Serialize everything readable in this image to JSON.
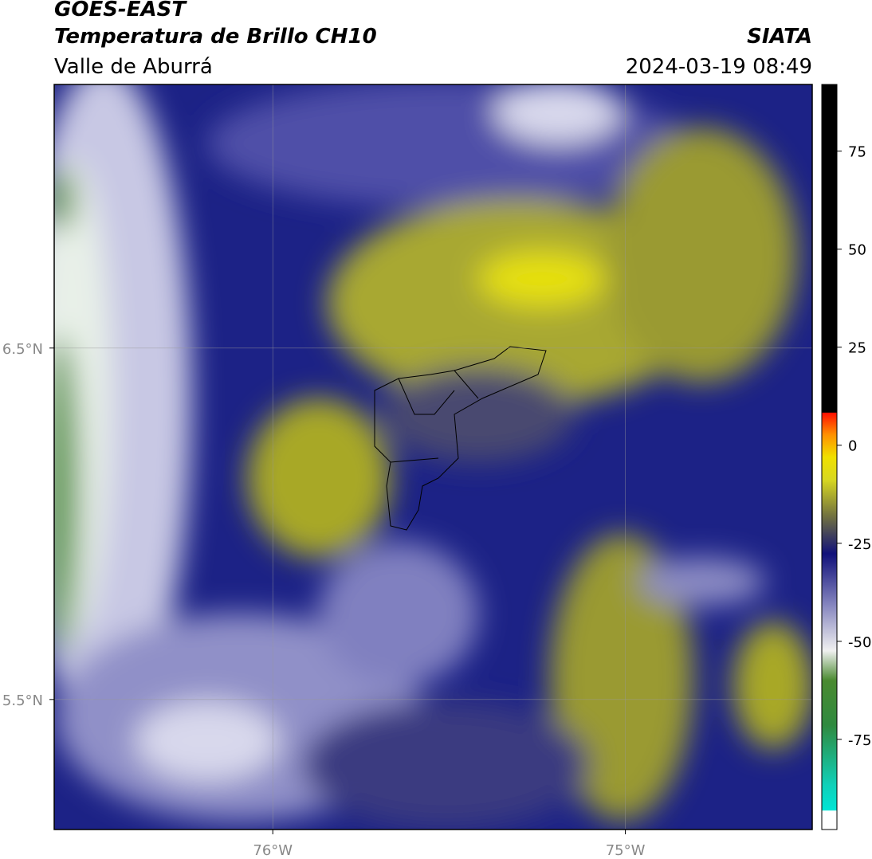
{
  "header": {
    "title": "GOES-EAST",
    "subtitle": "Temperatura de Brillo CH10",
    "region": "Valle de Aburrá",
    "source": "SIATA",
    "datetime": "2024-03-19 08:49"
  },
  "map": {
    "xlim": [
      -76.62,
      -74.47
    ],
    "ylim": [
      5.13,
      7.25
    ],
    "xticks": [
      {
        "value": -76,
        "label": "76°W"
      },
      {
        "value": -75,
        "label": "75°W"
      }
    ],
    "yticks": [
      {
        "value": 6.5,
        "label": "6.5°N"
      },
      {
        "value": 5.5,
        "label": "5.5°N"
      }
    ],
    "grid": true
  },
  "colorbar": {
    "lim": [
      -98,
      92
    ],
    "ticks": [
      -75,
      -50,
      -25,
      0,
      25,
      50,
      75
    ]
  }
}
